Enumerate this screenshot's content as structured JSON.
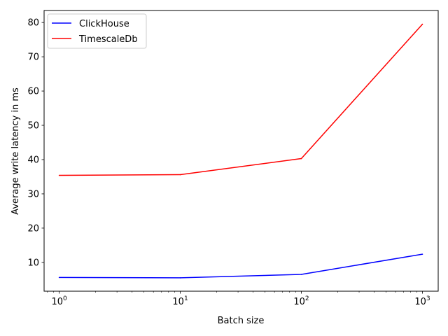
{
  "chart_data": {
    "type": "line",
    "xscale": "log",
    "x": [
      1,
      10,
      100,
      1000
    ],
    "xlim": [
      0.75,
      1350
    ],
    "ylim": [
      1.6,
      83.5
    ],
    "xticks": [
      {
        "value": 1,
        "base": "10",
        "exp": "0"
      },
      {
        "value": 10,
        "base": "10",
        "exp": "1"
      },
      {
        "value": 100,
        "base": "10",
        "exp": "2"
      },
      {
        "value": 1000,
        "base": "10",
        "exp": "3"
      }
    ],
    "yticks": [
      {
        "value": 10,
        "label": "10"
      },
      {
        "value": 20,
        "label": "20"
      },
      {
        "value": 30,
        "label": "30"
      },
      {
        "value": 40,
        "label": "40"
      },
      {
        "value": 50,
        "label": "50"
      },
      {
        "value": 60,
        "label": "60"
      },
      {
        "value": 70,
        "label": "70"
      },
      {
        "value": 80,
        "label": "80"
      }
    ],
    "xlabel": "Batch size",
    "ylabel": "Average write latency in ms",
    "legend_position": "upper-left",
    "grid": false,
    "series": [
      {
        "name": "ClickHouse",
        "color": "#0000ff",
        "values": [
          5.6,
          5.5,
          6.5,
          12.4
        ]
      },
      {
        "name": "TimescaleDb",
        "color": "#ff0000",
        "values": [
          35.4,
          35.6,
          40.3,
          79.5
        ]
      }
    ]
  }
}
